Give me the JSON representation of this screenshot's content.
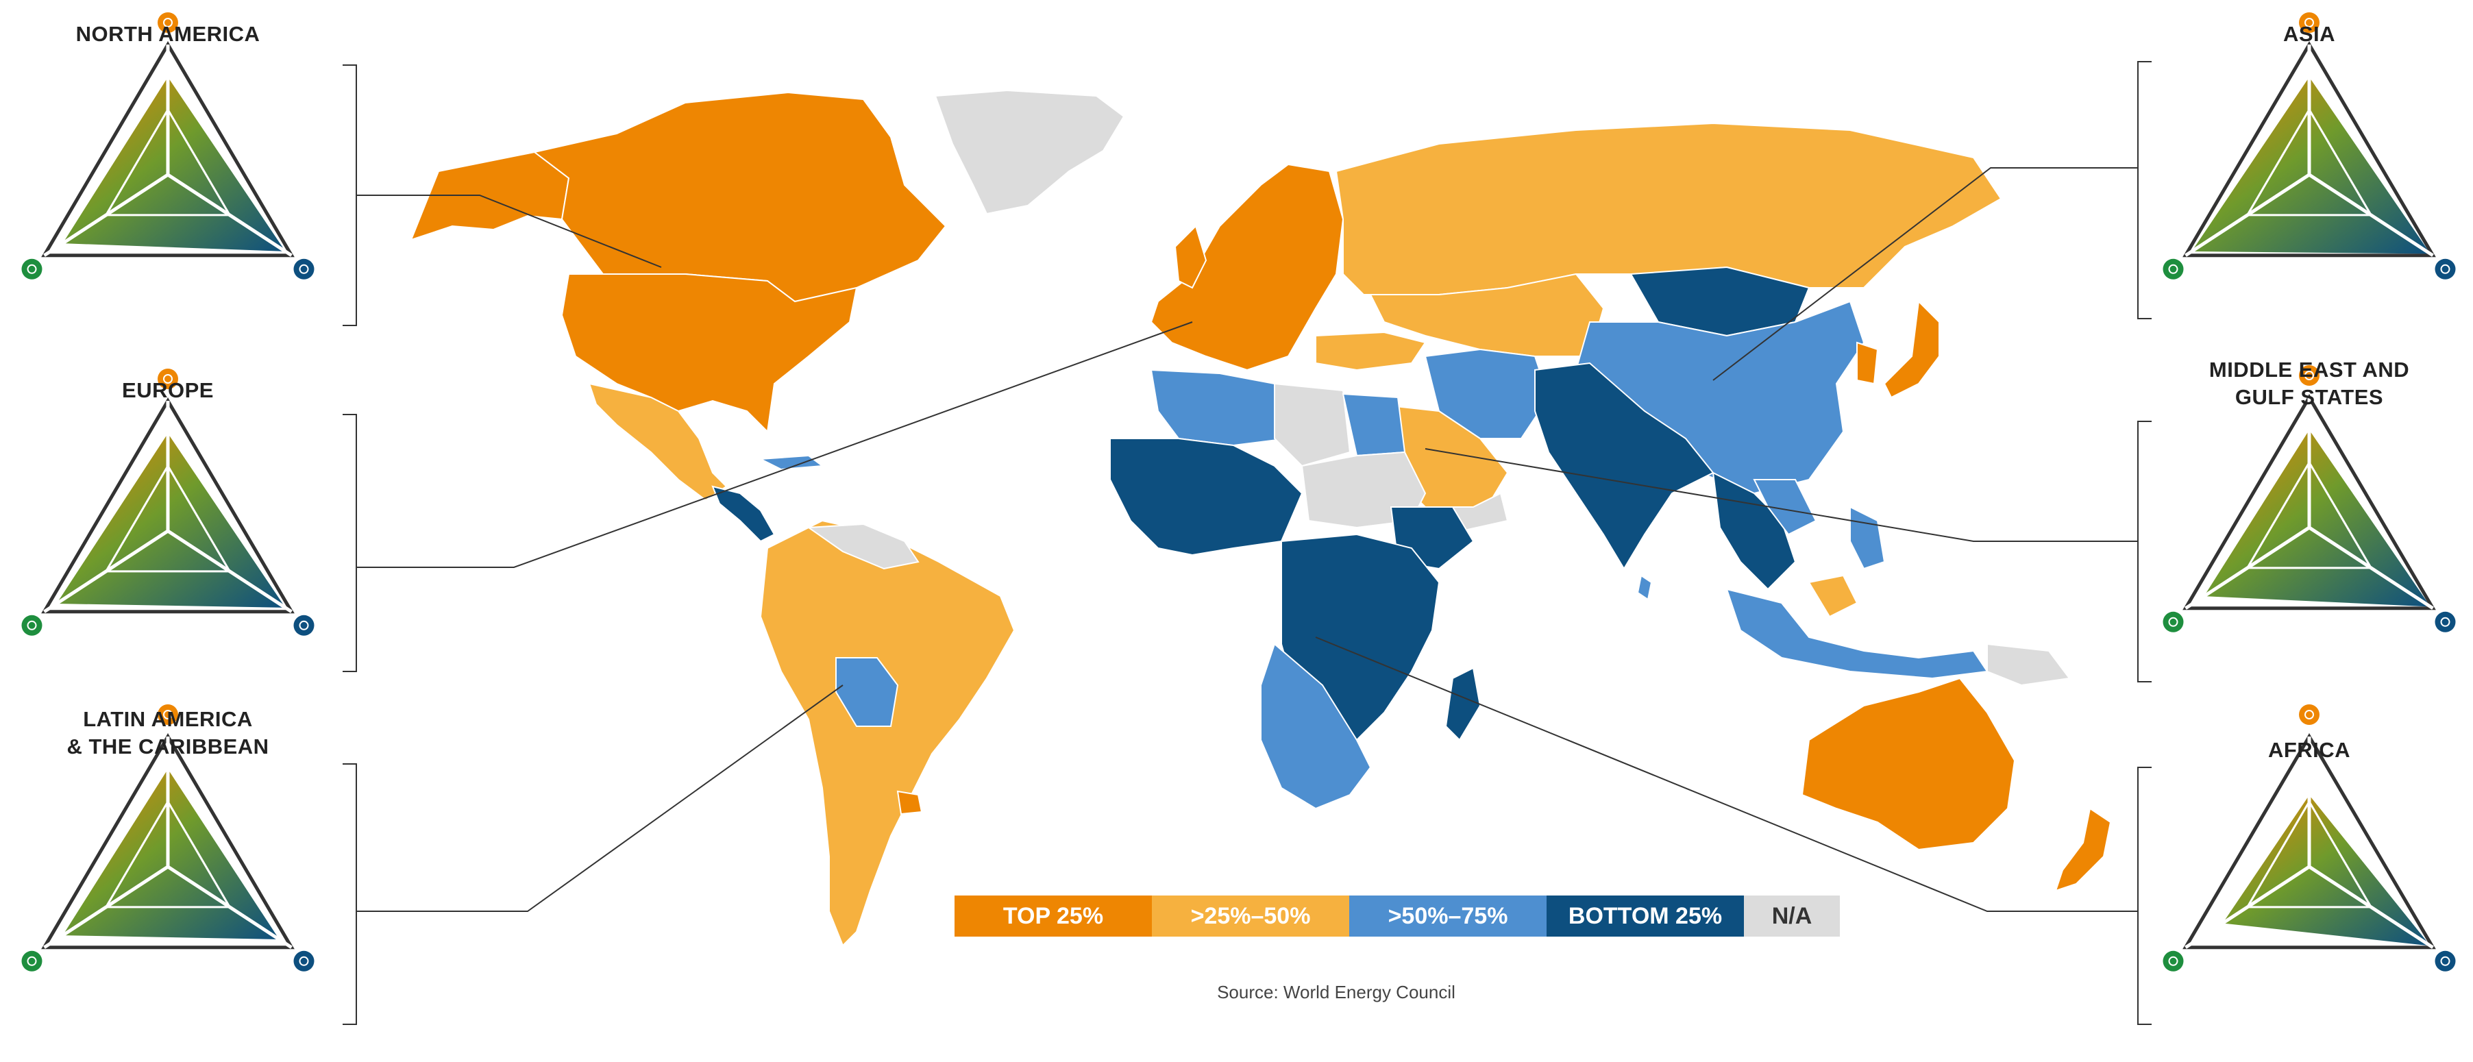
{
  "regions": [
    {
      "id": "north-america",
      "title_lines": [
        "NORTH AMERICA"
      ],
      "line_color": "#222222"
    },
    {
      "id": "europe",
      "title_lines": [
        "EUROPE"
      ],
      "line_color": "#222222"
    },
    {
      "id": "latin-america",
      "title_lines": [
        "LATIN AMERICA",
        "& THE CARIBBEAN"
      ],
      "line_color": "#222222"
    },
    {
      "id": "asia",
      "title_lines": [
        "ASIA"
      ],
      "line_color": "#222222"
    },
    {
      "id": "middle-east",
      "title_lines": [
        "MIDDLE EAST AND",
        "GULF STATES"
      ],
      "line_color": "#222222"
    },
    {
      "id": "africa",
      "title_lines": [
        "AFRICA"
      ],
      "line_color": "#222222"
    }
  ],
  "legend": [
    {
      "label": "TOP 25%",
      "color": "#EE8602"
    },
    {
      "label": ">25%–50%",
      "color": "#F6B13F"
    },
    {
      "label": ">50%–75%",
      "color": "#4E8FD0"
    },
    {
      "label": "BOTTOM 25%",
      "color": "#0D4F7F"
    },
    {
      "label": "N/A",
      "color": "#DCDCDC"
    }
  ],
  "source": "Source: World Energy Council",
  "triangle_icons": {
    "top": {
      "name": "lock-icon",
      "color": "#EE8602"
    },
    "left": {
      "name": "leaf-icon",
      "color": "#1E8E3E"
    },
    "right": {
      "name": "hand-icon",
      "color": "#0D4F7F"
    }
  },
  "map_colors": {
    "top25": "#EE8602",
    "q2": "#F6B13F",
    "q3": "#4E8FD0",
    "bottom25": "#0D4F7F",
    "na": "#DCDCDC"
  }
}
